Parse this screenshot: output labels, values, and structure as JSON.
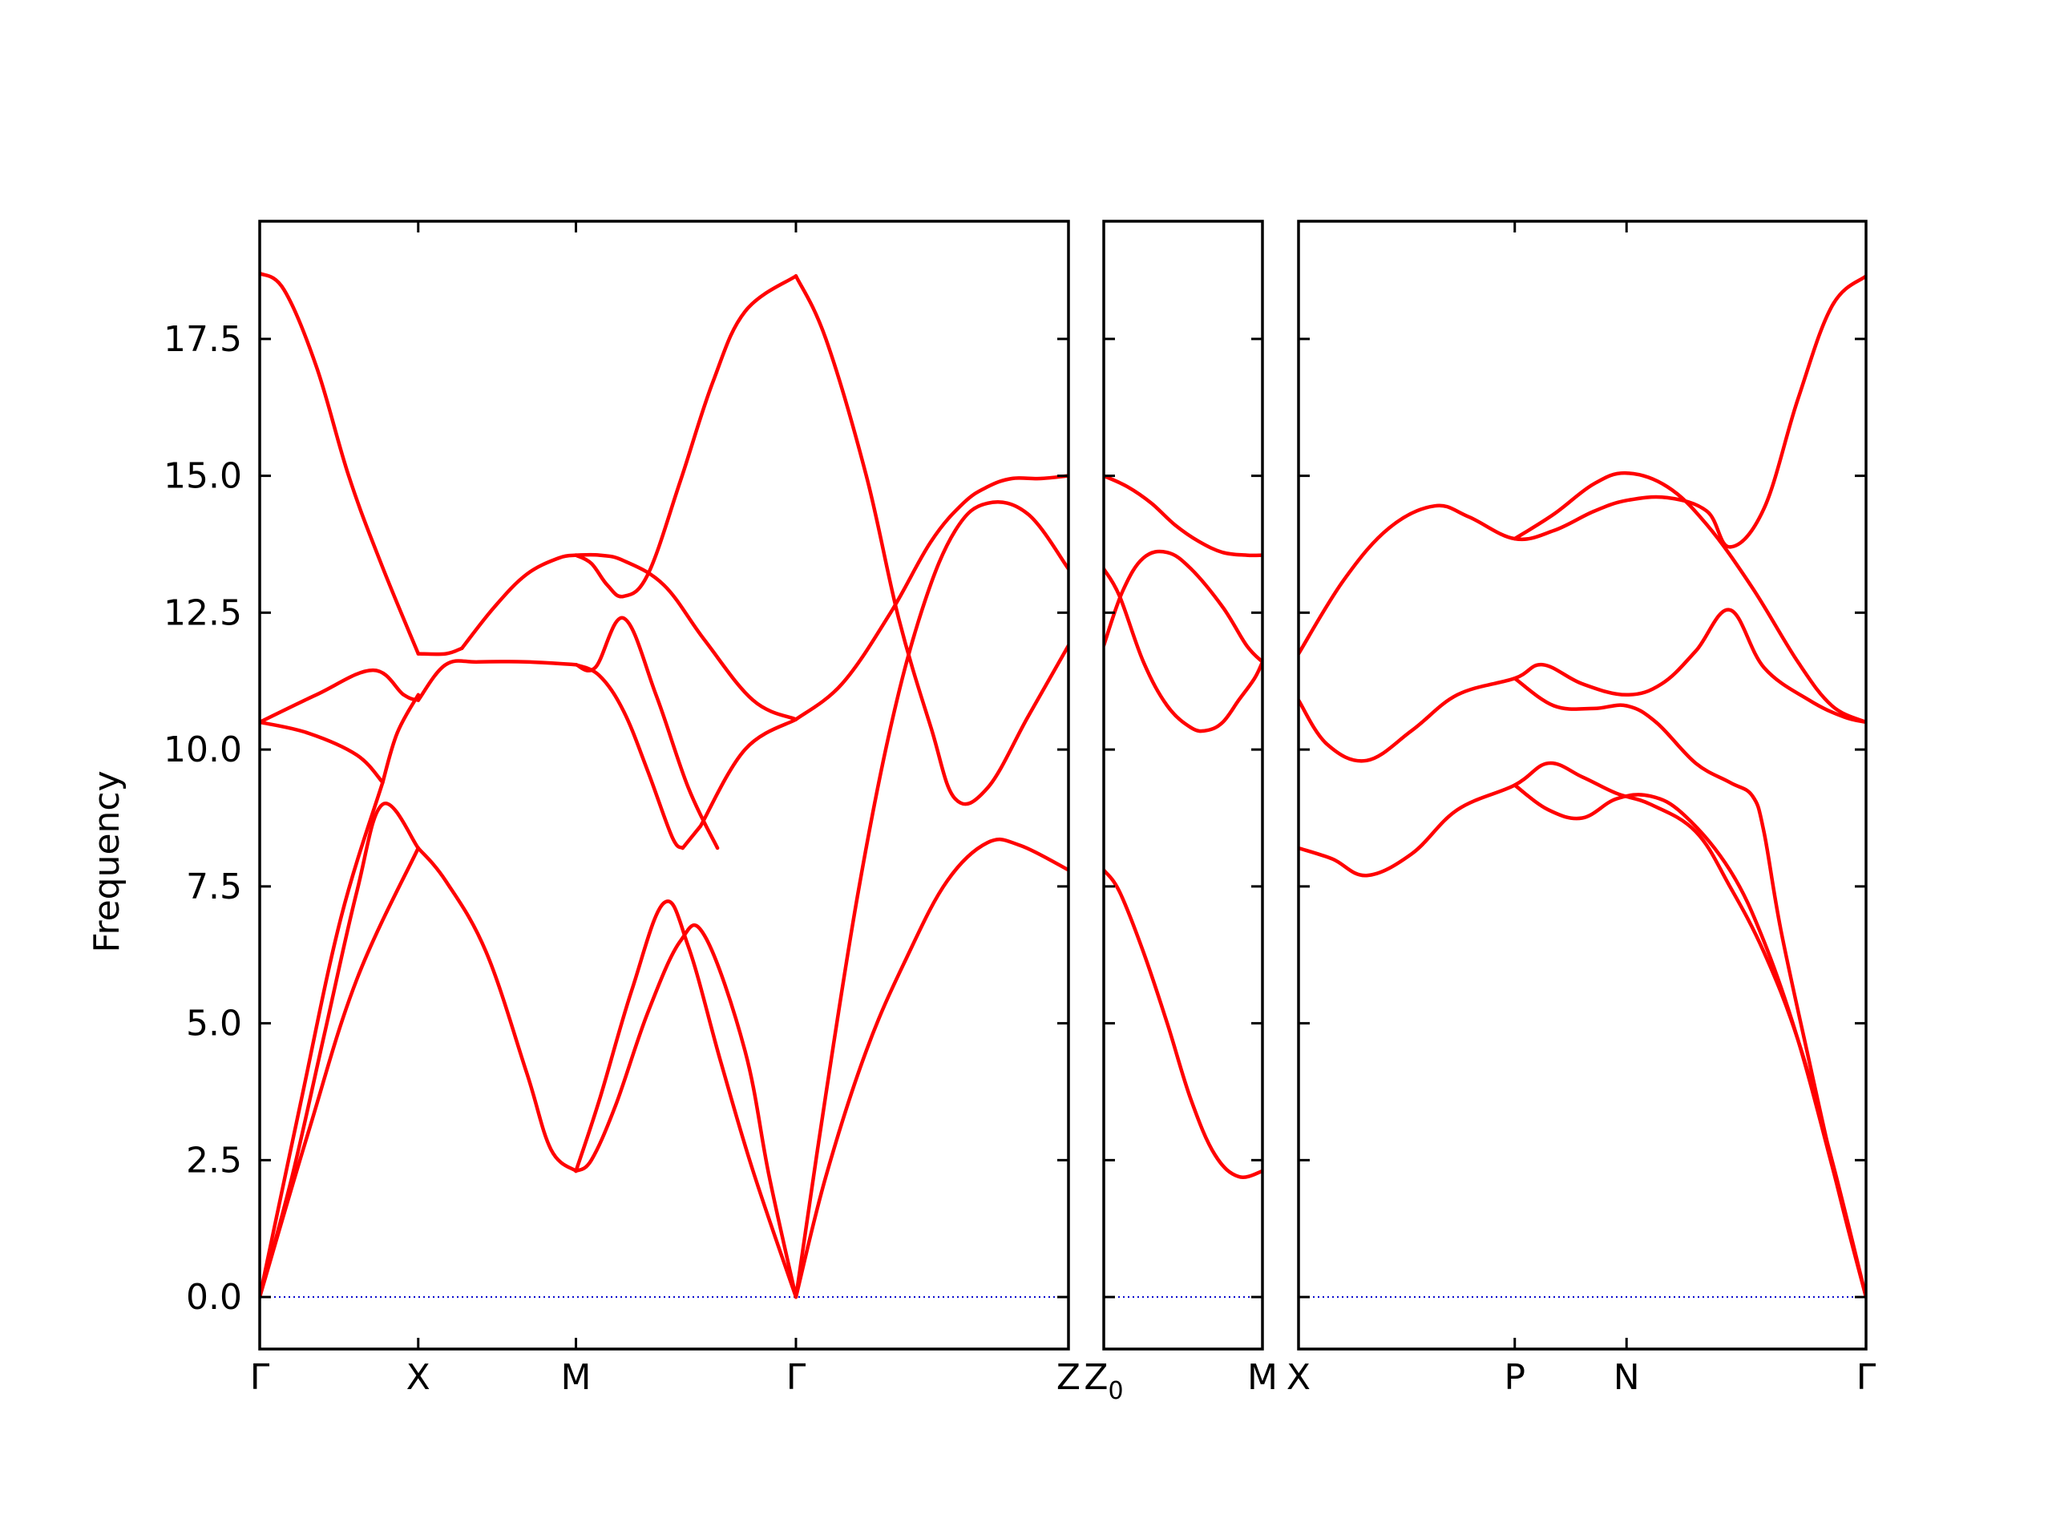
{
  "chart_data": {
    "type": "line",
    "ylabel": "Frequency",
    "ylim": [
      -0.95,
      19.65
    ],
    "yticks": [
      "0.0",
      "2.5",
      "5.0",
      "7.5",
      "10.0",
      "12.5",
      "15.0",
      "17.5"
    ],
    "line_color": "#ff0000",
    "zero_line_color": "#0000cc",
    "panels": [
      {
        "name": "panel-1",
        "xticks": [
          {
            "x": 0.0,
            "label": "Γ"
          },
          {
            "x": 0.196,
            "label": "X"
          },
          {
            "x": 0.391,
            "label": "M"
          },
          {
            "x": 0.663,
            "label": "Γ"
          },
          {
            "x": 1.0,
            "label": "Z"
          }
        ],
        "series": [
          {
            "x": [
              0,
              0.03,
              0.07,
              0.11,
              0.15,
              0.196
            ],
            "y": [
              18.7,
              18.4,
              17.0,
              15.0,
              13.4,
              11.75
            ]
          },
          {
            "x": [
              0.196,
              0.23,
              0.25
            ],
            "y": [
              11.75,
              11.75,
              11.85
            ]
          },
          {
            "x": [
              0.25,
              0.29,
              0.33,
              0.37,
              0.391
            ],
            "y": [
              11.85,
              12.6,
              13.2,
              13.5,
              13.55
            ]
          },
          {
            "x": [
              0.391,
              0.42,
              0.45,
              0.5,
              0.55,
              0.61,
              0.663
            ],
            "y": [
              13.55,
              13.55,
              13.45,
              13.0,
              12.0,
              10.9,
              10.55
            ]
          },
          {
            "x": [
              0.391,
              0.41,
              0.43,
              0.45,
              0.48,
              0.52,
              0.56,
              0.6,
              0.663
            ],
            "y": [
              13.55,
              13.4,
              13.0,
              12.8,
              13.2,
              14.9,
              16.7,
              18.0,
              18.65
            ]
          },
          {
            "x": [
              0,
              0.07,
              0.14,
              0.178,
              0.196
            ],
            "y": [
              10.5,
              11.0,
              11.45,
              11.0,
              10.9
            ]
          },
          {
            "x": [
              0.196,
              0.23,
              0.27,
              0.33,
              0.391
            ],
            "y": [
              10.9,
              11.55,
              11.6,
              11.6,
              11.55
            ]
          },
          {
            "x": [
              0.391,
              0.415,
              0.45,
              0.49,
              0.53,
              0.566
            ],
            "y": [
              11.55,
              11.5,
              12.4,
              11.0,
              9.3,
              8.2
            ]
          },
          {
            "x": [
              0.391,
              0.42,
              0.45,
              0.48,
              0.51,
              0.523
            ],
            "y": [
              11.55,
              11.35,
              10.7,
              9.6,
              8.4,
              8.2
            ]
          },
          {
            "x": [
              0.523,
              0.545
            ],
            "y": [
              8.2,
              8.6
            ]
          },
          {
            "x": [
              0.545,
              0.6,
              0.663
            ],
            "y": [
              8.6,
              10.0,
              10.55
            ]
          },
          {
            "x": [
              0,
              0.06,
              0.12,
              0.152
            ],
            "y": [
              10.5,
              10.3,
              9.9,
              9.4
            ]
          },
          {
            "x": [
              0,
              0.05,
              0.1,
              0.152
            ],
            "y": [
              0,
              3.5,
              6.9,
              9.4
            ]
          },
          {
            "x": [
              0.152,
              0.17,
              0.196
            ],
            "y": [
              9.4,
              10.3,
              11.0
            ]
          },
          {
            "x": [
              0,
              0.04,
              0.08,
              0.12,
              0.152,
              0.196
            ],
            "y": [
              0,
              2.2,
              4.8,
              7.4,
              9.0,
              8.2
            ]
          },
          {
            "x": [
              0.196,
              0.23,
              0.28,
              0.33,
              0.36,
              0.391
            ],
            "y": [
              8.2,
              7.6,
              6.3,
              4.1,
              2.7,
              2.3
            ]
          },
          {
            "x": [
              0,
              0.06,
              0.12,
              0.196
            ],
            "y": [
              0,
              3.0,
              5.8,
              8.2
            ]
          },
          {
            "x": [
              0.391,
              0.41,
              0.44,
              0.48,
              0.52,
              0.55,
              0.6,
              0.63,
              0.663
            ],
            "y": [
              2.3,
              2.5,
              3.5,
              5.2,
              6.5,
              6.6,
              4.5,
              2.2,
              0
            ]
          },
          {
            "x": [
              0.391,
              0.42,
              0.46,
              0.5,
              0.53,
              0.57,
              0.61,
              0.663
            ],
            "y": [
              2.3,
              3.6,
              5.6,
              7.2,
              6.4,
              4.3,
              2.3,
              0
            ]
          },
          {
            "x": [
              0.663,
              0.7,
              0.74,
              0.78,
              0.82,
              0.86,
              0.9,
              0.95,
              1.0
            ],
            "y": [
              0,
              3.7,
              7.4,
              10.4,
              12.6,
              14.0,
              14.5,
              14.3,
              13.3
            ]
          },
          {
            "x": [
              0.663,
              0.72,
              0.78,
              0.83,
              0.87,
              0.9,
              0.93,
              0.965,
              1.0
            ],
            "y": [
              10.55,
              11.2,
              12.5,
              13.8,
              14.5,
              14.8,
              14.95,
              14.95,
              15.0
            ]
          },
          {
            "x": [
              0.663,
              0.7,
              0.75,
              0.79,
              0.83,
              0.86,
              0.9,
              0.95,
              1.0
            ],
            "y": [
              18.65,
              17.5,
              15.0,
              12.4,
              10.4,
              9.1,
              9.3,
              10.6,
              11.9
            ]
          },
          {
            "x": [
              0.663,
              0.7,
              0.75,
              0.8,
              0.85,
              0.9,
              0.94,
              1.0
            ],
            "y": [
              0,
              2.2,
              4.5,
              6.2,
              7.6,
              8.3,
              8.25,
              7.8
            ]
          }
        ]
      },
      {
        "name": "panel-2",
        "xticks": [
          {
            "x": 0.0,
            "label": "Z_0"
          },
          {
            "x": 1.0,
            "label": "M"
          }
        ],
        "series": [
          {
            "x": [
              0,
              0.15,
              0.3,
              0.45,
              0.6,
              0.75,
              0.9,
              1.0
            ],
            "y": [
              15.0,
              14.8,
              14.5,
              14.1,
              13.8,
              13.6,
              13.55,
              13.55
            ]
          },
          {
            "x": [
              0,
              0.12,
              0.25,
              0.4,
              0.55,
              0.75,
              0.9,
              1.0
            ],
            "y": [
              11.9,
              12.9,
              13.5,
              13.6,
              13.3,
              12.6,
              11.9,
              11.6
            ]
          },
          {
            "x": [
              0,
              0.1,
              0.25,
              0.4,
              0.55,
              0.65,
              0.75,
              0.85,
              0.95,
              1.0
            ],
            "y": [
              13.3,
              12.8,
              11.6,
              10.8,
              10.4,
              10.35,
              10.5,
              10.9,
              11.3,
              11.6
            ]
          },
          {
            "x": [
              0,
              0.1,
              0.25,
              0.4,
              0.55,
              0.7,
              0.85,
              1.0
            ],
            "y": [
              7.8,
              7.4,
              6.3,
              5.0,
              3.6,
              2.6,
              2.2,
              2.3
            ]
          }
        ]
      },
      {
        "name": "panel-3",
        "xticks": [
          {
            "x": 0.0,
            "label": "X"
          },
          {
            "x": 0.381,
            "label": "P"
          },
          {
            "x": 0.578,
            "label": "N"
          },
          {
            "x": 1.0,
            "label": "Γ"
          }
        ],
        "series": [
          {
            "x": [
              0,
              0.08,
              0.16,
              0.24,
              0.3,
              0.381,
              0.45,
              0.52,
              0.578,
              0.65,
              0.72,
              0.76,
              0.82,
              0.88,
              0.94,
              1.0
            ],
            "y": [
              11.75,
              13.1,
              14.05,
              14.45,
              14.25,
              13.85,
              14.0,
              14.35,
              14.55,
              14.6,
              14.35,
              13.7,
              14.4,
              16.4,
              18.1,
              18.65
            ]
          },
          {
            "x": [
              0.381,
              0.45,
              0.52,
              0.578,
              0.65,
              0.72,
              0.8,
              0.88,
              0.94,
              1.0
            ],
            "y": [
              13.85,
              14.3,
              14.85,
              15.05,
              14.8,
              14.1,
              12.95,
              11.6,
              10.8,
              10.5
            ]
          },
          {
            "x": [
              0,
              0.05,
              0.12,
              0.2,
              0.28,
              0.381,
              0.43,
              0.5,
              0.578,
              0.64,
              0.7,
              0.76,
              0.82,
              0.9,
              0.96,
              1.0
            ],
            "y": [
              10.9,
              10.1,
              9.8,
              10.35,
              11.0,
              11.3,
              11.55,
              11.2,
              11.0,
              11.2,
              11.8,
              12.55,
              11.5,
              10.9,
              10.6,
              10.5
            ]
          },
          {
            "x": [
              0.381,
              0.45,
              0.52,
              0.578,
              0.63,
              0.7,
              0.76,
              0.8,
              0.82,
              0.85,
              0.9,
              0.95,
              1.0
            ],
            "y": [
              11.3,
              10.8,
              10.75,
              10.8,
              10.5,
              9.75,
              9.4,
              9.15,
              8.5,
              6.7,
              4.3,
              2.0,
              0
            ]
          },
          {
            "x": [
              0,
              0.06,
              0.12,
              0.2,
              0.28,
              0.381,
              0.44,
              0.5,
              0.56,
              0.62,
              0.7,
              0.76,
              0.82,
              0.88,
              0.94,
              1.0
            ],
            "y": [
              8.2,
              8.0,
              7.7,
              8.1,
              8.9,
              9.35,
              9.75,
              9.5,
              9.2,
              9.0,
              8.5,
              7.5,
              6.3,
              4.7,
              2.5,
              0
            ]
          },
          {
            "x": [
              0.381,
              0.44,
              0.5,
              0.56,
              0.62,
              0.68,
              0.76,
              0.82,
              0.88,
              0.94,
              1.0
            ],
            "y": [
              9.35,
              8.9,
              8.75,
              9.1,
              9.15,
              8.8,
              7.8,
              6.5,
              4.7,
              2.4,
              0
            ]
          }
        ]
      }
    ]
  }
}
